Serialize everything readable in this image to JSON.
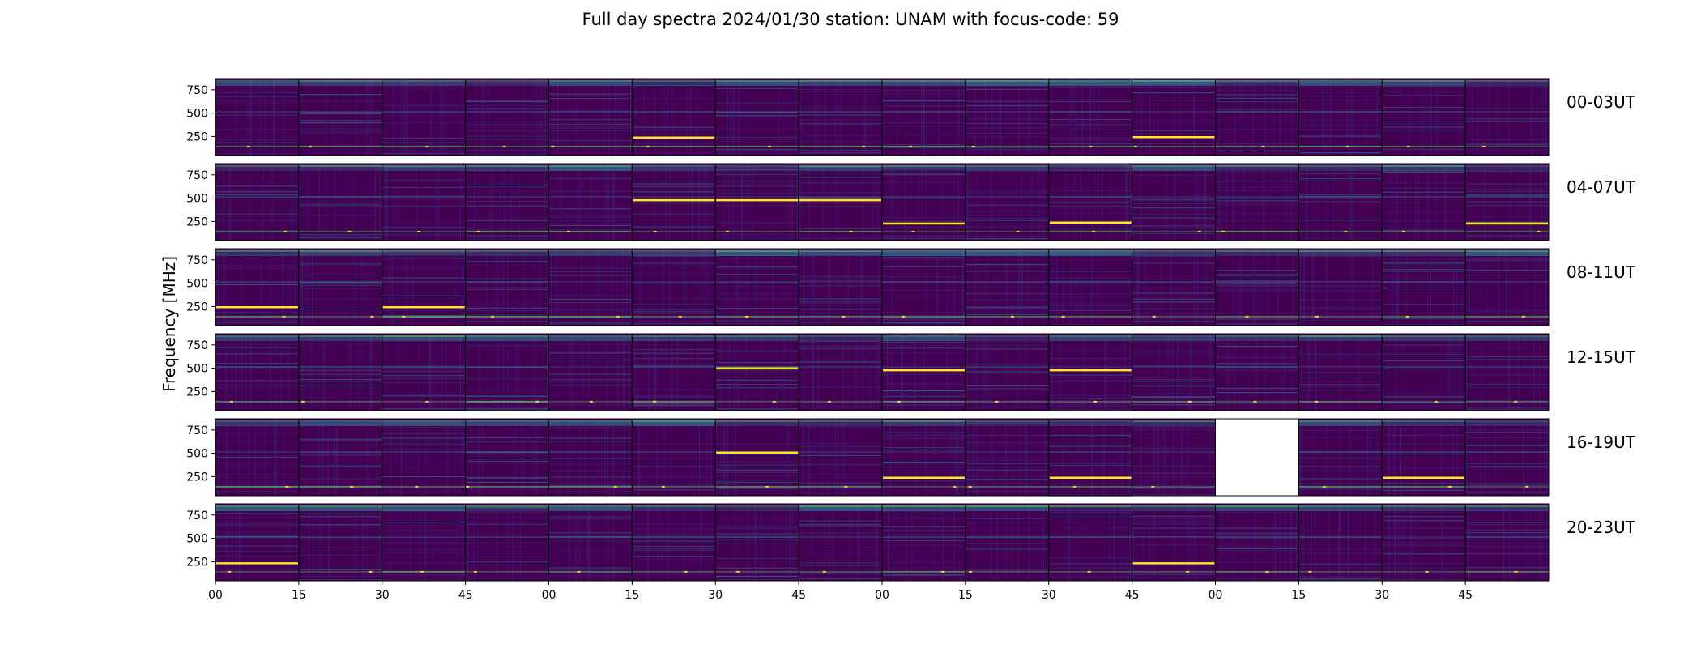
{
  "chart_data": {
    "type": "heatmap",
    "title": "Full day spectra 2024/01/30 station: UNAM with focus-code: 59",
    "ylabel": "Frequency [MHz]",
    "xlabel": "",
    "yticks": [
      "750",
      "500",
      "250"
    ],
    "ytick_values": [
      750,
      500,
      250
    ],
    "ylim": [
      45,
      870
    ],
    "xticks": [
      "00",
      "15",
      "30",
      "45",
      "00",
      "15",
      "30",
      "45",
      "00",
      "15",
      "30",
      "45",
      "00",
      "15",
      "30",
      "45"
    ],
    "rows": [
      {
        "label": "00-03UT",
        "lines": [
          [
            5,
            240
          ],
          [
            11,
            245
          ]
        ],
        "missing": []
      },
      {
        "label": "04-07UT",
        "lines": [
          [
            5,
            480
          ],
          [
            6,
            480
          ],
          [
            7,
            480
          ],
          [
            8,
            230
          ],
          [
            10,
            240
          ],
          [
            15,
            230
          ]
        ],
        "missing": []
      },
      {
        "label": "08-11UT",
        "lines": [
          [
            0,
            245
          ],
          [
            2,
            245
          ]
        ],
        "missing": []
      },
      {
        "label": "12-15UT",
        "lines": [
          [
            6,
            500
          ],
          [
            8,
            480
          ],
          [
            10,
            480
          ]
        ],
        "missing": []
      },
      {
        "label": "16-19UT",
        "lines": [
          [
            6,
            510
          ],
          [
            8,
            240
          ],
          [
            10,
            240
          ],
          [
            14,
            240
          ]
        ],
        "missing": [
          12
        ]
      },
      {
        "label": "20-23UT",
        "lines": [
          [
            0,
            235
          ],
          [
            11,
            235
          ]
        ],
        "missing": []
      }
    ],
    "panels_per_row": 16,
    "colormap": "viridis",
    "colors": {
      "background": "#440154",
      "low": "#3b2a7a",
      "mid": "#2c7f8e",
      "high": "#5ec962",
      "peak": "#fde725"
    },
    "grid": false,
    "legend": "none"
  }
}
